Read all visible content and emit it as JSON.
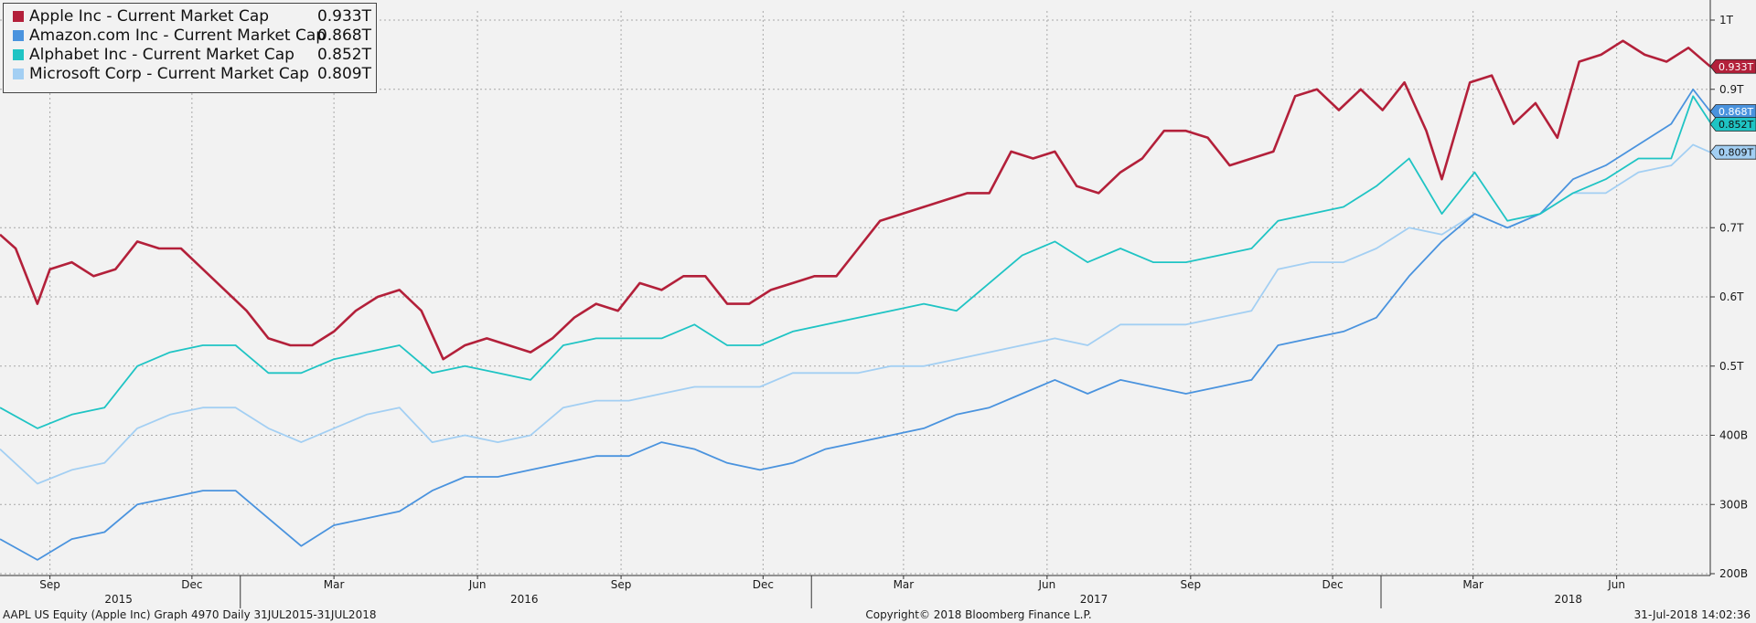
{
  "chart_data": {
    "type": "line",
    "x_range": [
      "2015-07-31",
      "2018-07-31"
    ],
    "y_range_usd_trillions": [
      0.2,
      1.0
    ],
    "y_ticks": [
      {
        "value": 0.2,
        "label": "200B"
      },
      {
        "value": 0.3,
        "label": "300B"
      },
      {
        "value": 0.4,
        "label": "400B"
      },
      {
        "value": 0.5,
        "label": "0.5T"
      },
      {
        "value": 0.6,
        "label": "0.6T"
      },
      {
        "value": 0.7,
        "label": "0.7T"
      },
      {
        "value": 0.9,
        "label": "0.9T"
      },
      {
        "value": 1.0,
        "label": "1T"
      }
    ],
    "x_ticks": [
      {
        "date": "2015-09-01",
        "label": "Sep"
      },
      {
        "date": "2015-12-01",
        "label": "Dec"
      },
      {
        "date": "2016-03-01",
        "label": "Mar"
      },
      {
        "date": "2016-06-01",
        "label": "Jun"
      },
      {
        "date": "2016-09-01",
        "label": "Sep"
      },
      {
        "date": "2016-12-01",
        "label": "Dec"
      },
      {
        "date": "2017-03-01",
        "label": "Mar"
      },
      {
        "date": "2017-06-01",
        "label": "Jun"
      },
      {
        "date": "2017-09-01",
        "label": "Sep"
      },
      {
        "date": "2017-12-01",
        "label": "Dec"
      },
      {
        "date": "2018-03-01",
        "label": "Mar"
      },
      {
        "date": "2018-06-01",
        "label": "Jun"
      }
    ],
    "year_labels": [
      {
        "date": "2015-10-15",
        "label": "2015"
      },
      {
        "date": "2016-07-01",
        "label": "2016"
      },
      {
        "date": "2017-07-01",
        "label": "2017"
      },
      {
        "date": "2018-05-01",
        "label": "2018"
      }
    ],
    "year_dividers": [
      "2016-01-01",
      "2017-01-01",
      "2018-01-01"
    ],
    "grid": true,
    "legend_position": "top-left",
    "series": [
      {
        "name": "Apple Inc - Current Market Cap",
        "last_label": "0.933T",
        "color": "#b3203a",
        "points": [
          [
            "2015-07-31",
            0.69
          ],
          [
            "2015-08-10",
            0.67
          ],
          [
            "2015-08-24",
            0.59
          ],
          [
            "2015-09-01",
            0.64
          ],
          [
            "2015-09-15",
            0.65
          ],
          [
            "2015-09-29",
            0.63
          ],
          [
            "2015-10-13",
            0.64
          ],
          [
            "2015-10-27",
            0.68
          ],
          [
            "2015-11-10",
            0.67
          ],
          [
            "2015-11-24",
            0.67
          ],
          [
            "2015-12-08",
            0.64
          ],
          [
            "2015-12-22",
            0.61
          ],
          [
            "2016-01-05",
            0.58
          ],
          [
            "2016-01-19",
            0.54
          ],
          [
            "2016-02-02",
            0.53
          ],
          [
            "2016-02-16",
            0.53
          ],
          [
            "2016-03-01",
            0.55
          ],
          [
            "2016-03-15",
            0.58
          ],
          [
            "2016-03-29",
            0.6
          ],
          [
            "2016-04-12",
            0.61
          ],
          [
            "2016-04-26",
            0.58
          ],
          [
            "2016-05-10",
            0.51
          ],
          [
            "2016-05-24",
            0.53
          ],
          [
            "2016-06-07",
            0.54
          ],
          [
            "2016-06-21",
            0.53
          ],
          [
            "2016-07-05",
            0.52
          ],
          [
            "2016-07-19",
            0.54
          ],
          [
            "2016-08-02",
            0.57
          ],
          [
            "2016-08-16",
            0.59
          ],
          [
            "2016-08-30",
            0.58
          ],
          [
            "2016-09-13",
            0.62
          ],
          [
            "2016-09-27",
            0.61
          ],
          [
            "2016-10-11",
            0.63
          ],
          [
            "2016-10-25",
            0.63
          ],
          [
            "2016-11-08",
            0.59
          ],
          [
            "2016-11-22",
            0.59
          ],
          [
            "2016-12-06",
            0.61
          ],
          [
            "2016-12-20",
            0.62
          ],
          [
            "2017-01-03",
            0.63
          ],
          [
            "2017-01-17",
            0.63
          ],
          [
            "2017-01-31",
            0.67
          ],
          [
            "2017-02-14",
            0.71
          ],
          [
            "2017-02-28",
            0.72
          ],
          [
            "2017-03-14",
            0.73
          ],
          [
            "2017-03-28",
            0.74
          ],
          [
            "2017-04-11",
            0.75
          ],
          [
            "2017-04-25",
            0.75
          ],
          [
            "2017-05-09",
            0.81
          ],
          [
            "2017-05-23",
            0.8
          ],
          [
            "2017-06-06",
            0.81
          ],
          [
            "2017-06-20",
            0.76
          ],
          [
            "2017-07-04",
            0.75
          ],
          [
            "2017-07-18",
            0.78
          ],
          [
            "2017-08-01",
            0.8
          ],
          [
            "2017-08-15",
            0.84
          ],
          [
            "2017-08-29",
            0.84
          ],
          [
            "2017-09-12",
            0.83
          ],
          [
            "2017-09-26",
            0.79
          ],
          [
            "2017-10-10",
            0.8
          ],
          [
            "2017-10-24",
            0.81
          ],
          [
            "2017-11-07",
            0.89
          ],
          [
            "2017-11-21",
            0.9
          ],
          [
            "2017-12-05",
            0.87
          ],
          [
            "2017-12-19",
            0.9
          ],
          [
            "2018-01-02",
            0.87
          ],
          [
            "2018-01-16",
            0.91
          ],
          [
            "2018-01-30",
            0.84
          ],
          [
            "2018-02-09",
            0.77
          ],
          [
            "2018-02-27",
            0.91
          ],
          [
            "2018-03-13",
            0.92
          ],
          [
            "2018-03-27",
            0.85
          ],
          [
            "2018-04-10",
            0.88
          ],
          [
            "2018-04-24",
            0.83
          ],
          [
            "2018-05-08",
            0.94
          ],
          [
            "2018-05-22",
            0.95
          ],
          [
            "2018-06-05",
            0.97
          ],
          [
            "2018-06-19",
            0.95
          ],
          [
            "2018-07-03",
            0.94
          ],
          [
            "2018-07-17",
            0.96
          ],
          [
            "2018-07-31",
            0.933
          ]
        ]
      },
      {
        "name": "Amazon.com Inc - Current Market Cap",
        "last_label": "0.868T",
        "color": "#4a93de",
        "points": [
          [
            "2015-07-31",
            0.25
          ],
          [
            "2015-08-24",
            0.22
          ],
          [
            "2015-09-15",
            0.25
          ],
          [
            "2015-10-06",
            0.26
          ],
          [
            "2015-10-27",
            0.3
          ],
          [
            "2015-11-17",
            0.31
          ],
          [
            "2015-12-08",
            0.32
          ],
          [
            "2015-12-29",
            0.32
          ],
          [
            "2016-01-19",
            0.28
          ],
          [
            "2016-02-09",
            0.24
          ],
          [
            "2016-03-01",
            0.27
          ],
          [
            "2016-03-22",
            0.28
          ],
          [
            "2016-04-12",
            0.29
          ],
          [
            "2016-05-03",
            0.32
          ],
          [
            "2016-05-24",
            0.34
          ],
          [
            "2016-06-14",
            0.34
          ],
          [
            "2016-07-05",
            0.35
          ],
          [
            "2016-07-26",
            0.36
          ],
          [
            "2016-08-16",
            0.37
          ],
          [
            "2016-09-06",
            0.37
          ],
          [
            "2016-09-27",
            0.39
          ],
          [
            "2016-10-18",
            0.38
          ],
          [
            "2016-11-08",
            0.36
          ],
          [
            "2016-11-29",
            0.35
          ],
          [
            "2016-12-20",
            0.36
          ],
          [
            "2017-01-10",
            0.38
          ],
          [
            "2017-01-31",
            0.39
          ],
          [
            "2017-02-21",
            0.4
          ],
          [
            "2017-03-14",
            0.41
          ],
          [
            "2017-04-04",
            0.43
          ],
          [
            "2017-04-25",
            0.44
          ],
          [
            "2017-05-16",
            0.46
          ],
          [
            "2017-06-06",
            0.48
          ],
          [
            "2017-06-27",
            0.46
          ],
          [
            "2017-07-18",
            0.48
          ],
          [
            "2017-08-08",
            0.47
          ],
          [
            "2017-08-29",
            0.46
          ],
          [
            "2017-09-19",
            0.47
          ],
          [
            "2017-10-10",
            0.48
          ],
          [
            "2017-10-27",
            0.53
          ],
          [
            "2017-11-17",
            0.54
          ],
          [
            "2017-12-08",
            0.55
          ],
          [
            "2017-12-29",
            0.57
          ],
          [
            "2018-01-19",
            0.63
          ],
          [
            "2018-02-09",
            0.68
          ],
          [
            "2018-03-02",
            0.72
          ],
          [
            "2018-03-23",
            0.7
          ],
          [
            "2018-04-13",
            0.72
          ],
          [
            "2018-05-04",
            0.77
          ],
          [
            "2018-05-25",
            0.79
          ],
          [
            "2018-06-15",
            0.82
          ],
          [
            "2018-07-06",
            0.85
          ],
          [
            "2018-07-20",
            0.9
          ],
          [
            "2018-07-31",
            0.868
          ]
        ]
      },
      {
        "name": "Alphabet Inc - Current Market Cap",
        "last_label": "0.852T",
        "color": "#1fc4c4",
        "points": [
          [
            "2015-07-31",
            0.44
          ],
          [
            "2015-08-24",
            0.41
          ],
          [
            "2015-09-15",
            0.43
          ],
          [
            "2015-10-06",
            0.44
          ],
          [
            "2015-10-27",
            0.5
          ],
          [
            "2015-11-17",
            0.52
          ],
          [
            "2015-12-08",
            0.53
          ],
          [
            "2015-12-29",
            0.53
          ],
          [
            "2016-01-19",
            0.49
          ],
          [
            "2016-02-09",
            0.49
          ],
          [
            "2016-03-01",
            0.51
          ],
          [
            "2016-03-22",
            0.52
          ],
          [
            "2016-04-12",
            0.53
          ],
          [
            "2016-05-03",
            0.49
          ],
          [
            "2016-05-24",
            0.5
          ],
          [
            "2016-06-14",
            0.49
          ],
          [
            "2016-07-05",
            0.48
          ],
          [
            "2016-07-26",
            0.53
          ],
          [
            "2016-08-16",
            0.54
          ],
          [
            "2016-09-06",
            0.54
          ],
          [
            "2016-09-27",
            0.54
          ],
          [
            "2016-10-18",
            0.56
          ],
          [
            "2016-11-08",
            0.53
          ],
          [
            "2016-11-29",
            0.53
          ],
          [
            "2016-12-20",
            0.55
          ],
          [
            "2017-01-10",
            0.56
          ],
          [
            "2017-01-31",
            0.57
          ],
          [
            "2017-02-21",
            0.58
          ],
          [
            "2017-03-14",
            0.59
          ],
          [
            "2017-04-04",
            0.58
          ],
          [
            "2017-04-25",
            0.62
          ],
          [
            "2017-05-16",
            0.66
          ],
          [
            "2017-06-06",
            0.68
          ],
          [
            "2017-06-27",
            0.65
          ],
          [
            "2017-07-18",
            0.67
          ],
          [
            "2017-08-08",
            0.65
          ],
          [
            "2017-08-29",
            0.65
          ],
          [
            "2017-09-19",
            0.66
          ],
          [
            "2017-10-10",
            0.67
          ],
          [
            "2017-10-27",
            0.71
          ],
          [
            "2017-11-17",
            0.72
          ],
          [
            "2017-12-08",
            0.73
          ],
          [
            "2017-12-29",
            0.76
          ],
          [
            "2018-01-19",
            0.8
          ],
          [
            "2018-02-09",
            0.72
          ],
          [
            "2018-03-02",
            0.78
          ],
          [
            "2018-03-23",
            0.71
          ],
          [
            "2018-04-13",
            0.72
          ],
          [
            "2018-05-04",
            0.75
          ],
          [
            "2018-05-25",
            0.77
          ],
          [
            "2018-06-15",
            0.8
          ],
          [
            "2018-07-06",
            0.8
          ],
          [
            "2018-07-20",
            0.89
          ],
          [
            "2018-07-31",
            0.852
          ]
        ]
      },
      {
        "name": "Microsoft Corp - Current Market Cap",
        "last_label": "0.809T",
        "color": "#a3cff3",
        "points": [
          [
            "2015-07-31",
            0.38
          ],
          [
            "2015-08-24",
            0.33
          ],
          [
            "2015-09-15",
            0.35
          ],
          [
            "2015-10-06",
            0.36
          ],
          [
            "2015-10-27",
            0.41
          ],
          [
            "2015-11-17",
            0.43
          ],
          [
            "2015-12-08",
            0.44
          ],
          [
            "2015-12-29",
            0.44
          ],
          [
            "2016-01-19",
            0.41
          ],
          [
            "2016-02-09",
            0.39
          ],
          [
            "2016-03-01",
            0.41
          ],
          [
            "2016-03-22",
            0.43
          ],
          [
            "2016-04-12",
            0.44
          ],
          [
            "2016-05-03",
            0.39
          ],
          [
            "2016-05-24",
            0.4
          ],
          [
            "2016-06-14",
            0.39
          ],
          [
            "2016-07-05",
            0.4
          ],
          [
            "2016-07-26",
            0.44
          ],
          [
            "2016-08-16",
            0.45
          ],
          [
            "2016-09-06",
            0.45
          ],
          [
            "2016-09-27",
            0.46
          ],
          [
            "2016-10-18",
            0.47
          ],
          [
            "2016-11-08",
            0.47
          ],
          [
            "2016-11-29",
            0.47
          ],
          [
            "2016-12-20",
            0.49
          ],
          [
            "2017-01-10",
            0.49
          ],
          [
            "2017-01-31",
            0.49
          ],
          [
            "2017-02-21",
            0.5
          ],
          [
            "2017-03-14",
            0.5
          ],
          [
            "2017-04-04",
            0.51
          ],
          [
            "2017-04-25",
            0.52
          ],
          [
            "2017-05-16",
            0.53
          ],
          [
            "2017-06-06",
            0.54
          ],
          [
            "2017-06-27",
            0.53
          ],
          [
            "2017-07-18",
            0.56
          ],
          [
            "2017-08-08",
            0.56
          ],
          [
            "2017-08-29",
            0.56
          ],
          [
            "2017-09-19",
            0.57
          ],
          [
            "2017-10-10",
            0.58
          ],
          [
            "2017-10-27",
            0.64
          ],
          [
            "2017-11-17",
            0.65
          ],
          [
            "2017-12-08",
            0.65
          ],
          [
            "2017-12-29",
            0.67
          ],
          [
            "2018-01-19",
            0.7
          ],
          [
            "2018-02-09",
            0.69
          ],
          [
            "2018-03-02",
            0.72
          ],
          [
            "2018-03-23",
            0.7
          ],
          [
            "2018-04-13",
            0.72
          ],
          [
            "2018-05-04",
            0.75
          ],
          [
            "2018-05-25",
            0.75
          ],
          [
            "2018-06-15",
            0.78
          ],
          [
            "2018-07-06",
            0.79
          ],
          [
            "2018-07-20",
            0.82
          ],
          [
            "2018-07-31",
            0.809
          ]
        ]
      }
    ]
  },
  "footer": {
    "left": "AAPL US Equity (Apple Inc) Graph 4970  Daily 31JUL2015-31JUL2018",
    "center": "Copyright© 2018 Bloomberg Finance L.P.",
    "right": "31-Jul-2018 14:02:36"
  }
}
